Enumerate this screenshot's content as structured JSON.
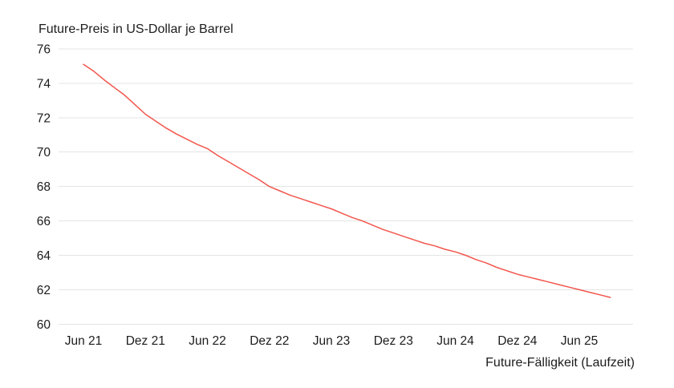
{
  "header": {
    "title": "Future-Preis in US-Dollar je Barrel"
  },
  "axes": {
    "x_title": "Future-Fälligkeit (Laufzeit)"
  },
  "colors": {
    "line": "#f2564d",
    "gridline": "#e4e4e4",
    "text": "#1c1c1c",
    "background": "#ffffff"
  },
  "chart_data": {
    "type": "line",
    "title": "Future-Preis in US-Dollar je Barrel",
    "xlabel": "Future-Fälligkeit (Laufzeit)",
    "ylabel": "Future-Preis in US-Dollar je Barrel",
    "ylim": [
      60,
      76
    ],
    "y_ticks": [
      76,
      74,
      72,
      70,
      68,
      66,
      64,
      62,
      60
    ],
    "x_ticks": [
      "Jun 21",
      "Dez 21",
      "Jun 22",
      "Dez 22",
      "Jun 23",
      "Dez 23",
      "Jun 24",
      "Dez 24",
      "Jun 25"
    ],
    "grid": "horizontal-only",
    "legend": "none",
    "line_color": "#f2564d",
    "series": [
      {
        "name": "Future-Preis in US-Dollar je Barrel",
        "x": [
          "Jun 21",
          "Jul 21",
          "Aug 21",
          "Sep 21",
          "Okt 21",
          "Nov 21",
          "Dez 21",
          "Jan 22",
          "Feb 22",
          "Mär 22",
          "Apr 22",
          "Mai 22",
          "Jun 22",
          "Jul 22",
          "Aug 22",
          "Sep 22",
          "Okt 22",
          "Nov 22",
          "Dez 22",
          "Jan 23",
          "Feb 23",
          "Mär 23",
          "Apr 23",
          "Mai 23",
          "Jun 23",
          "Jul 23",
          "Aug 23",
          "Sep 23",
          "Okt 23",
          "Nov 23",
          "Dez 23",
          "Jan 24",
          "Feb 24",
          "Mär 24",
          "Apr 24",
          "Mai 24",
          "Jun 24",
          "Jul 24",
          "Aug 24",
          "Sep 24",
          "Okt 24",
          "Nov 24",
          "Dez 24",
          "Jan 25",
          "Feb 25",
          "Mär 25",
          "Apr 25",
          "Mai 25",
          "Jun 25",
          "Jul 25",
          "Aug 25",
          "Sep 25"
        ],
        "values": [
          75.1,
          74.7,
          74.2,
          73.75,
          73.3,
          72.75,
          72.2,
          71.8,
          71.4,
          71.05,
          70.75,
          70.45,
          70.2,
          69.8,
          69.45,
          69.1,
          68.75,
          68.4,
          68.0,
          67.75,
          67.5,
          67.3,
          67.1,
          66.9,
          66.7,
          66.45,
          66.2,
          66.0,
          65.75,
          65.5,
          65.3,
          65.1,
          64.9,
          64.7,
          64.55,
          64.35,
          64.2,
          64.0,
          63.75,
          63.55,
          63.3,
          63.1,
          62.9,
          62.75,
          62.6,
          62.45,
          62.3,
          62.15,
          62.0,
          61.85,
          61.7,
          61.55
        ]
      }
    ]
  }
}
